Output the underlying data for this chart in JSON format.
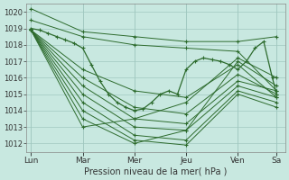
{
  "title": "",
  "xlabel": "Pression niveau de la mer( hPa )",
  "bg_color": "#c8e8e0",
  "grid_color": "#a0c8c0",
  "line_color": "#2d6b2d",
  "days": [
    "Lun",
    "Mar",
    "Mer",
    "Jeu",
    "Ven",
    "Sa"
  ],
  "day_positions": [
    0,
    24,
    48,
    72,
    96,
    114
  ],
  "ylim": [
    1011.5,
    1020.5
  ],
  "yticks": [
    1012,
    1013,
    1014,
    1015,
    1016,
    1017,
    1018,
    1019,
    1020
  ],
  "lines": [
    [
      1020.2,
      1018.8,
      1018.5,
      1018.2,
      1018.2,
      1018.5
    ],
    [
      1019.5,
      1018.5,
      1018.0,
      1017.8,
      1017.6,
      1015.2
    ],
    [
      1018.9,
      1016.5,
      1015.2,
      1014.8,
      1016.8,
      1014.8
    ],
    [
      1018.9,
      1016.0,
      1014.2,
      1013.8,
      1016.2,
      1015.0
    ],
    [
      1018.9,
      1015.5,
      1013.5,
      1013.2,
      1015.8,
      1015.2
    ],
    [
      1018.9,
      1015.0,
      1013.0,
      1012.8,
      1015.5,
      1014.8
    ],
    [
      1018.9,
      1014.5,
      1012.5,
      1012.2,
      1015.2,
      1014.5
    ],
    [
      1018.9,
      1014.0,
      1012.2,
      1011.9,
      1015.0,
      1014.2
    ],
    [
      1018.9,
      1013.5,
      1012.0,
      1012.8,
      1017.0,
      1015.5
    ],
    [
      1018.9,
      1013.0,
      1013.5,
      1014.5,
      1017.2,
      1016.0
    ]
  ],
  "detailed_line": {
    "x": [
      0,
      4,
      8,
      12,
      16,
      20,
      24,
      28,
      32,
      36,
      40,
      44,
      48,
      52,
      56,
      60,
      64,
      68,
      72,
      76,
      80,
      84,
      88,
      92,
      96,
      100,
      104,
      108,
      112,
      114
    ],
    "y": [
      1019.0,
      1018.9,
      1018.7,
      1018.5,
      1018.3,
      1018.1,
      1017.8,
      1016.8,
      1015.8,
      1015.0,
      1014.5,
      1014.2,
      1014.0,
      1014.1,
      1014.5,
      1015.0,
      1015.2,
      1015.0,
      1016.5,
      1017.0,
      1017.2,
      1017.1,
      1017.0,
      1016.8,
      1016.5,
      1017.0,
      1017.8,
      1018.2,
      1016.0,
      1015.0
    ]
  }
}
